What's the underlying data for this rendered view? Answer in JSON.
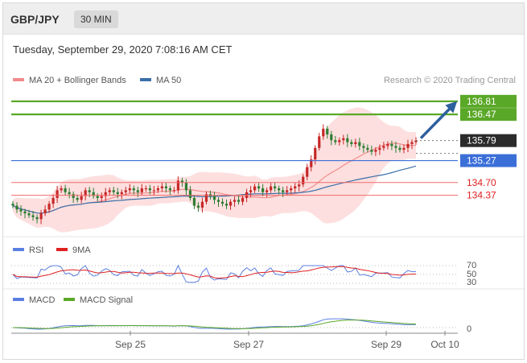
{
  "header": {
    "pair": "GBP/JPY",
    "timeframe": "30 MIN",
    "datetime": "Tuesday, September 29, 2020 7:08:16 AM CET"
  },
  "colors": {
    "ma20": "#f28b8b",
    "ma50": "#3a6fa8",
    "bollinger_fill": "#fdd9d9",
    "up_candle": "#c62828",
    "down_candle": "#2e7d32",
    "resistance": "#5aa828",
    "support_blue": "#3b6fd8",
    "support_red": "#f06b6b",
    "rsi": "#5b7fe0",
    "rsi_ma": "#e02020",
    "macd": "#5b7fe0",
    "macd_signal": "#5aa828",
    "arrow": "#2e5f9e"
  },
  "chart_data": [
    {
      "type": "candlestick",
      "title": "",
      "legend": [
        {
          "name": "MA 20 + Bollinger Bands",
          "color": "#f28b8b"
        },
        {
          "name": "MA 50",
          "color": "#3a6fa8"
        }
      ],
      "watermark": "Research © 2020 Trading Central",
      "x_ticks": [
        "Sep 25",
        "Sep 27",
        "Sep 29",
        "Oct 10"
      ],
      "y_range": [
        133.4,
        137.1
      ],
      "levels": [
        {
          "value": 136.81,
          "label": "136.81",
          "kind": "resistance"
        },
        {
          "value": 136.47,
          "label": "136.47",
          "kind": "resistance"
        },
        {
          "value": 135.79,
          "label": "135.79",
          "kind": "last"
        },
        {
          "value": 135.27,
          "label": "135.27",
          "kind": "support-blue"
        },
        {
          "value": 134.7,
          "label": "134.70",
          "kind": "support-red"
        },
        {
          "value": 134.37,
          "label": "134.37",
          "kind": "support-red"
        }
      ],
      "close_series_approx": [
        134.1,
        134.0,
        133.95,
        133.9,
        133.85,
        133.8,
        133.75,
        133.9,
        134.0,
        134.15,
        134.3,
        134.5,
        134.55,
        134.45,
        134.4,
        134.3,
        134.25,
        134.35,
        134.5,
        134.45,
        134.35,
        134.3,
        134.35,
        134.45,
        134.5,
        134.45,
        134.4,
        134.45,
        134.5,
        134.55,
        134.5,
        134.45,
        134.55,
        134.55,
        134.5,
        134.5,
        134.55,
        134.6,
        134.55,
        134.5,
        134.5,
        134.75,
        134.7,
        134.5,
        134.3,
        134.1,
        134.05,
        134.2,
        134.4,
        134.35,
        134.25,
        134.2,
        134.15,
        134.1,
        134.2,
        134.25,
        134.2,
        134.3,
        134.45,
        134.5,
        134.6,
        134.55,
        134.45,
        134.5,
        134.6,
        134.55,
        134.5,
        134.45,
        134.5,
        134.55,
        134.6,
        134.65,
        134.85,
        135.1,
        135.3,
        135.6,
        135.9,
        136.1,
        135.95,
        135.8,
        135.75,
        135.8,
        135.85,
        135.75,
        135.7,
        135.75,
        135.65,
        135.6,
        135.55,
        135.5,
        135.55,
        135.6,
        135.65,
        135.7,
        135.65,
        135.6,
        135.55,
        135.6,
        135.7,
        135.75,
        135.79
      ],
      "projection_target": 136.81
    },
    {
      "type": "line",
      "title": "",
      "series": [
        {
          "name": "RSI",
          "color": "#5b7fe0"
        },
        {
          "name": "9MA",
          "color": "#e02020"
        }
      ],
      "y_ticks": [
        70,
        50,
        30
      ]
    },
    {
      "type": "line",
      "title": "",
      "series": [
        {
          "name": "MACD",
          "color": "#5b7fe0"
        },
        {
          "name": "MACD Signal",
          "color": "#5aa828"
        }
      ],
      "y_ticks": [
        0
      ]
    }
  ]
}
